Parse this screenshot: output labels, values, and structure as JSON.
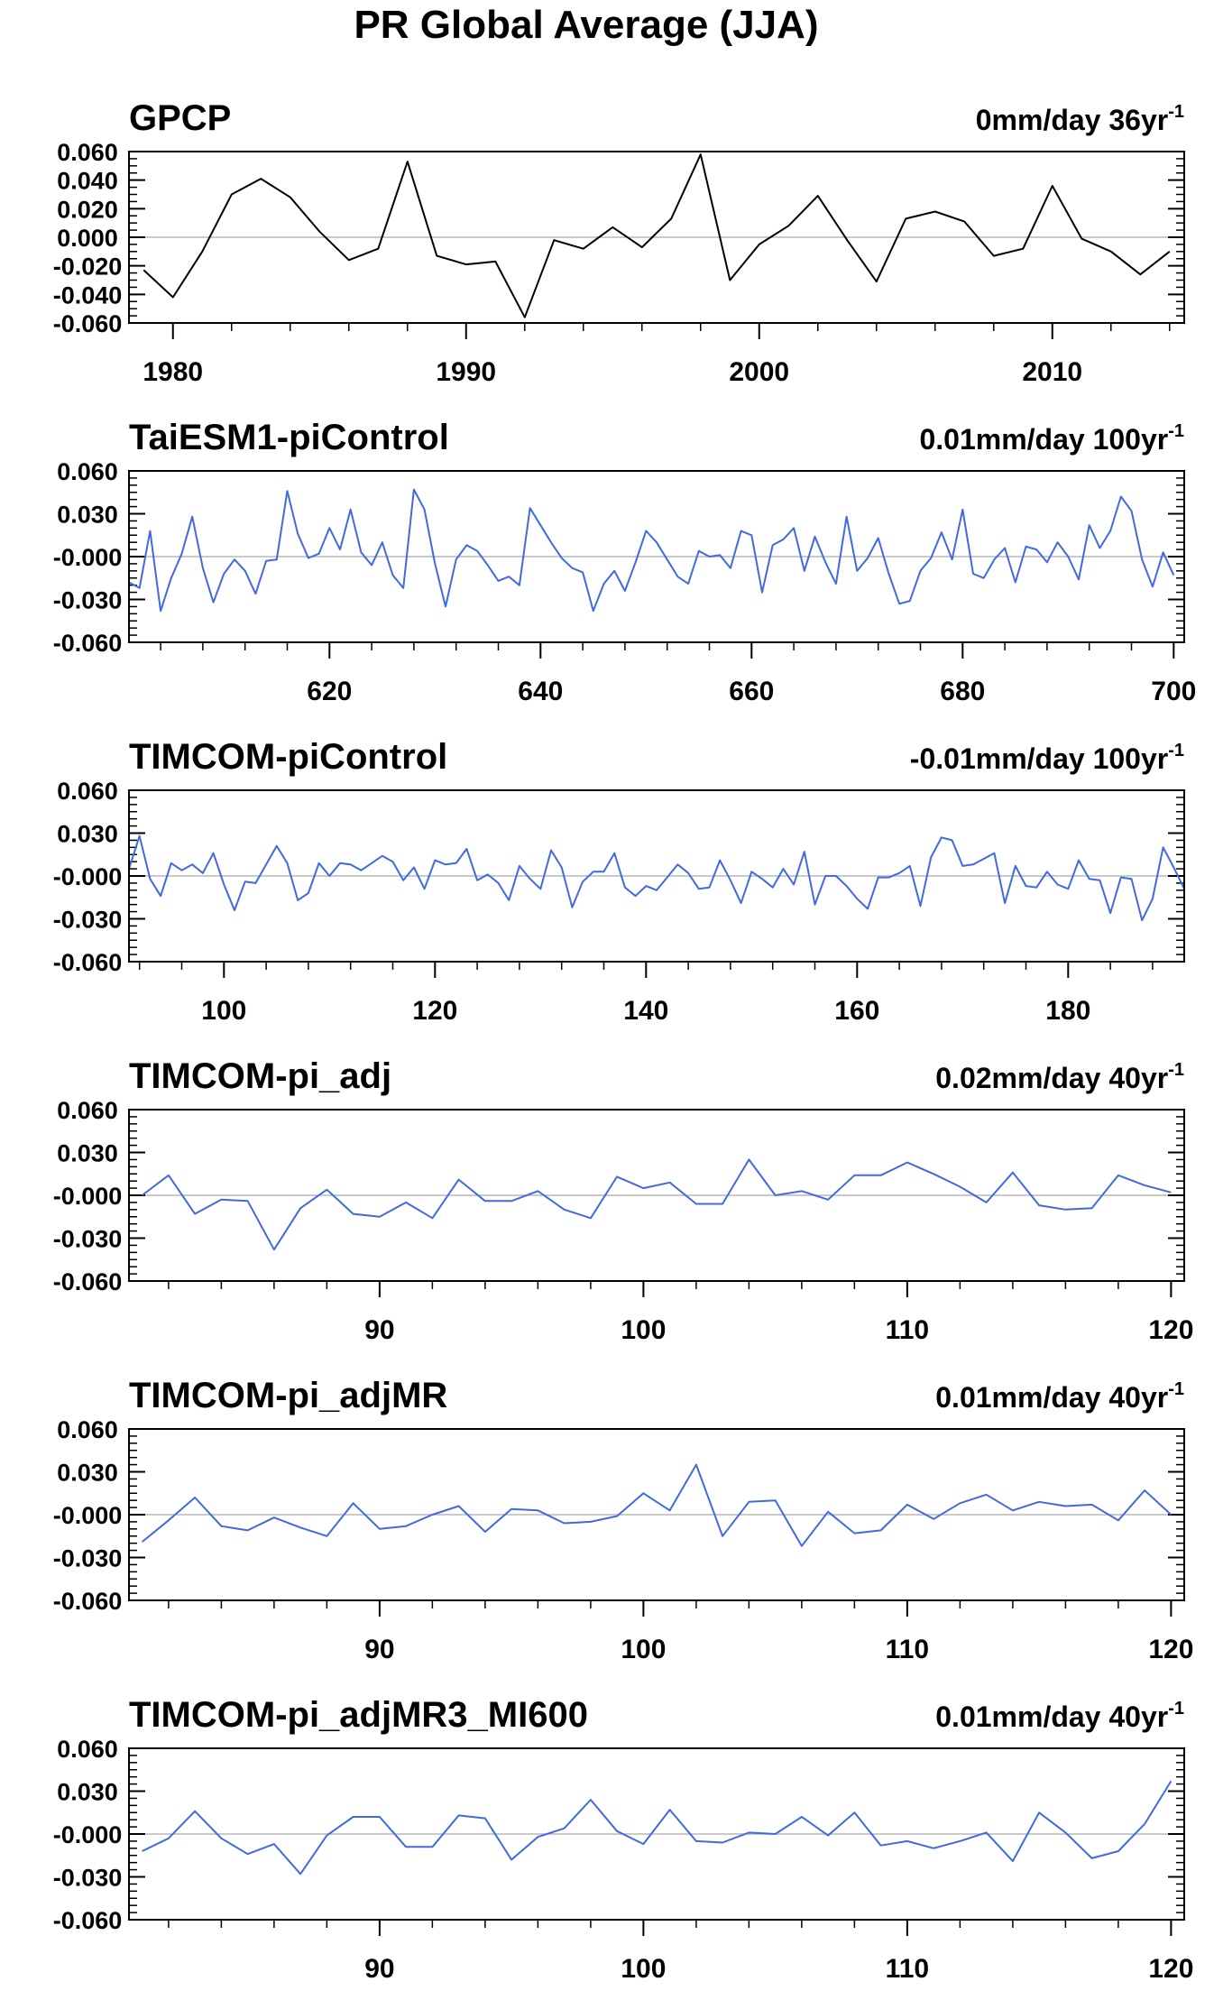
{
  "title": "PR Global Average (JJA)",
  "chart_data": [
    {
      "type": "line",
      "title": "GPCP",
      "trend": "0mm/day 36yr",
      "trend_exp": "-1",
      "color": "#000000",
      "xlim": [
        1978.5,
        2014.5
      ],
      "ylim": [
        -0.06,
        0.06
      ],
      "yticks": [
        "0.060",
        "0.040",
        "0.020",
        "0.000",
        "-0.020",
        "-0.040",
        "-0.060"
      ],
      "ytick_values": [
        0.06,
        0.04,
        0.02,
        0.0,
        -0.02,
        -0.04,
        -0.06
      ],
      "xticks": [
        "1980",
        "1990",
        "2000",
        "2010"
      ],
      "xtick_values": [
        1980,
        1990,
        2000,
        2010
      ],
      "x": [
        1979,
        1980,
        1981,
        1982,
        1983,
        1984,
        1985,
        1986,
        1987,
        1988,
        1989,
        1990,
        1991,
        1992,
        1993,
        1994,
        1995,
        1996,
        1997,
        1998,
        1999,
        2000,
        2001,
        2002,
        2003,
        2004,
        2005,
        2006,
        2007,
        2008,
        2009,
        2010,
        2011,
        2012,
        2013,
        2014
      ],
      "values": [
        -0.023,
        -0.042,
        -0.01,
        0.03,
        0.041,
        0.028,
        0.004,
        -0.016,
        -0.008,
        0.053,
        -0.013,
        -0.019,
        -0.017,
        -0.056,
        -0.002,
        -0.008,
        0.007,
        -0.007,
        0.013,
        0.058,
        -0.03,
        -0.005,
        0.008,
        0.029,
        -0.002,
        -0.031,
        0.013,
        0.018,
        0.011,
        -0.013,
        -0.008,
        0.036,
        -0.001,
        -0.01,
        -0.026,
        -0.01
      ]
    },
    {
      "type": "line",
      "title": "TaiESM1-piControl",
      "trend": "0.01mm/day 100yr",
      "trend_exp": "-1",
      "color": "#4169e1",
      "xlim": [
        601,
        701
      ],
      "ylim": [
        -0.06,
        0.06
      ],
      "yticks": [
        "0.060",
        "0.030",
        "-0.000",
        "-0.030",
        "-0.060"
      ],
      "ytick_values": [
        0.06,
        0.03,
        0.0,
        -0.03,
        -0.06
      ],
      "xticks": [
        "620",
        "640",
        "660",
        "680",
        "700"
      ],
      "xtick_values": [
        620,
        640,
        660,
        680,
        700
      ],
      "x0": 601,
      "values": [
        -0.018,
        -0.022,
        0.018,
        -0.038,
        -0.015,
        0.002,
        0.028,
        -0.008,
        -0.032,
        -0.012,
        -0.002,
        -0.01,
        -0.026,
        -0.003,
        -0.002,
        0.046,
        0.016,
        -0.001,
        0.002,
        0.02,
        0.005,
        0.033,
        0.003,
        -0.006,
        0.01,
        -0.013,
        -0.022,
        0.047,
        0.033,
        -0.005,
        -0.035,
        -0.002,
        0.008,
        0.004,
        -0.006,
        -0.017,
        -0.014,
        -0.02,
        0.034,
        0.022,
        0.01,
        -0.001,
        -0.008,
        -0.011,
        -0.038,
        -0.019,
        -0.01,
        -0.024,
        -0.004,
        0.018,
        0.01,
        -0.002,
        -0.014,
        -0.019,
        0.004,
        0.0,
        0.001,
        -0.008,
        0.018,
        0.015,
        -0.025,
        0.008,
        0.012,
        0.02,
        -0.01,
        0.014,
        -0.004,
        -0.019,
        0.028,
        -0.01,
        -0.001,
        0.013,
        -0.012,
        -0.033,
        -0.031,
        -0.01,
        -0.001,
        0.017,
        -0.002,
        0.033,
        -0.012,
        -0.015,
        -0.002,
        0.006,
        -0.018,
        0.007,
        0.005,
        -0.004,
        0.01,
        0.0,
        -0.016,
        0.022,
        0.006,
        0.018,
        0.042,
        0.032,
        -0.002,
        -0.021,
        0.003,
        -0.013
      ]
    },
    {
      "type": "line",
      "title": "TIMCOM-piControl",
      "trend": "-0.01mm/day 100yr",
      "trend_exp": "-1",
      "color": "#4169e1",
      "xlim": [
        91,
        191
      ],
      "ylim": [
        -0.06,
        0.06
      ],
      "yticks": [
        "0.060",
        "0.030",
        "-0.000",
        "-0.030",
        "-0.060"
      ],
      "ytick_values": [
        0.06,
        0.03,
        0.0,
        -0.03,
        -0.06
      ],
      "xticks": [
        "100",
        "120",
        "140",
        "160",
        "180"
      ],
      "xtick_values": [
        100,
        120,
        140,
        160,
        180
      ],
      "x0": 91,
      "values": [
        0.005,
        0.028,
        -0.002,
        -0.014,
        0.009,
        0.004,
        0.008,
        0.002,
        0.016,
        -0.006,
        -0.024,
        -0.004,
        -0.005,
        0.008,
        0.021,
        0.009,
        -0.017,
        -0.012,
        0.009,
        0.0,
        0.009,
        0.008,
        0.004,
        0.009,
        0.014,
        0.01,
        -0.003,
        0.006,
        -0.009,
        0.011,
        0.008,
        0.009,
        0.019,
        -0.003,
        0.001,
        -0.005,
        -0.017,
        0.007,
        -0.002,
        -0.009,
        0.018,
        0.006,
        -0.022,
        -0.004,
        0.003,
        0.003,
        0.016,
        -0.008,
        -0.014,
        -0.007,
        -0.01,
        -0.001,
        0.008,
        0.002,
        -0.009,
        -0.008,
        0.011,
        -0.003,
        -0.019,
        0.003,
        -0.002,
        -0.008,
        0.005,
        -0.006,
        0.017,
        -0.02,
        0.0,
        0.0,
        -0.007,
        -0.016,
        -0.023,
        -0.001,
        -0.001,
        0.002,
        0.007,
        -0.021,
        0.013,
        0.027,
        0.025,
        0.007,
        0.008,
        0.012,
        0.016,
        -0.019,
        0.007,
        -0.007,
        -0.008,
        0.003,
        -0.006,
        -0.009,
        0.011,
        -0.002,
        -0.003,
        -0.026,
        -0.001,
        -0.002,
        -0.031,
        -0.016,
        0.02,
        0.006,
        -0.009
      ]
    },
    {
      "type": "line",
      "title": "TIMCOM-pi_adj",
      "trend": "0.02mm/day 40yr",
      "trend_exp": "-1",
      "color": "#4169e1",
      "xlim": [
        80.5,
        120.5
      ],
      "ylim": [
        -0.06,
        0.06
      ],
      "yticks": [
        "0.060",
        "0.030",
        "-0.000",
        "-0.030",
        "-0.060"
      ],
      "ytick_values": [
        0.06,
        0.03,
        0.0,
        -0.03,
        -0.06
      ],
      "xticks": [
        "90",
        "100",
        "110",
        "120"
      ],
      "xtick_values": [
        90,
        100,
        110,
        120
      ],
      "x0": 81,
      "values": [
        0.0,
        0.014,
        -0.013,
        -0.003,
        -0.004,
        -0.038,
        -0.009,
        0.004,
        -0.013,
        -0.015,
        -0.005,
        -0.016,
        0.011,
        -0.004,
        -0.004,
        0.003,
        -0.01,
        -0.016,
        0.013,
        0.005,
        0.009,
        -0.006,
        -0.006,
        0.025,
        0.0,
        0.003,
        -0.003,
        0.014,
        0.014,
        0.023,
        0.015,
        0.006,
        -0.005,
        0.016,
        -0.007,
        -0.01,
        -0.009,
        0.014,
        0.007,
        0.002
      ]
    },
    {
      "type": "line",
      "title": "TIMCOM-pi_adjMR",
      "trend": "0.01mm/day 40yr",
      "trend_exp": "-1",
      "color": "#4169e1",
      "xlim": [
        80.5,
        120.5
      ],
      "ylim": [
        -0.06,
        0.06
      ],
      "yticks": [
        "0.060",
        "0.030",
        "-0.000",
        "-0.030",
        "-0.060"
      ],
      "ytick_values": [
        0.06,
        0.03,
        0.0,
        -0.03,
        -0.06
      ],
      "xticks": [
        "90",
        "100",
        "110",
        "120"
      ],
      "xtick_values": [
        90,
        100,
        110,
        120
      ],
      "x0": 81,
      "values": [
        -0.019,
        -0.004,
        0.012,
        -0.008,
        -0.011,
        -0.002,
        -0.009,
        -0.015,
        0.008,
        -0.01,
        -0.008,
        0.0,
        0.006,
        -0.012,
        0.004,
        0.003,
        -0.006,
        -0.005,
        -0.001,
        0.015,
        0.003,
        0.035,
        -0.015,
        0.009,
        0.01,
        -0.022,
        0.002,
        -0.013,
        -0.011,
        0.007,
        -0.003,
        0.008,
        0.014,
        0.003,
        0.009,
        0.006,
        0.007,
        -0.004,
        0.017,
        0.0
      ]
    },
    {
      "type": "line",
      "title": "TIMCOM-pi_adjMR3_MI600",
      "trend": "0.01mm/day 40yr",
      "trend_exp": "-1",
      "color": "#4169e1",
      "xlim": [
        80.5,
        120.5
      ],
      "ylim": [
        -0.06,
        0.06
      ],
      "yticks": [
        "0.060",
        "0.030",
        "-0.000",
        "-0.030",
        "-0.060"
      ],
      "ytick_values": [
        0.06,
        0.03,
        0.0,
        -0.03,
        -0.06
      ],
      "xticks": [
        "90",
        "100",
        "110",
        "120"
      ],
      "xtick_values": [
        90,
        100,
        110,
        120
      ],
      "x0": 81,
      "values": [
        -0.012,
        -0.003,
        0.016,
        -0.003,
        -0.014,
        -0.007,
        -0.028,
        -0.001,
        0.012,
        0.012,
        -0.009,
        -0.009,
        0.013,
        0.011,
        -0.018,
        -0.002,
        0.004,
        0.024,
        0.002,
        -0.007,
        0.017,
        -0.005,
        -0.006,
        0.001,
        0.0,
        0.012,
        -0.001,
        0.015,
        -0.008,
        -0.005,
        -0.01,
        -0.005,
        0.001,
        -0.019,
        0.015,
        0.001,
        -0.017,
        -0.012,
        0.007,
        0.037
      ]
    }
  ]
}
